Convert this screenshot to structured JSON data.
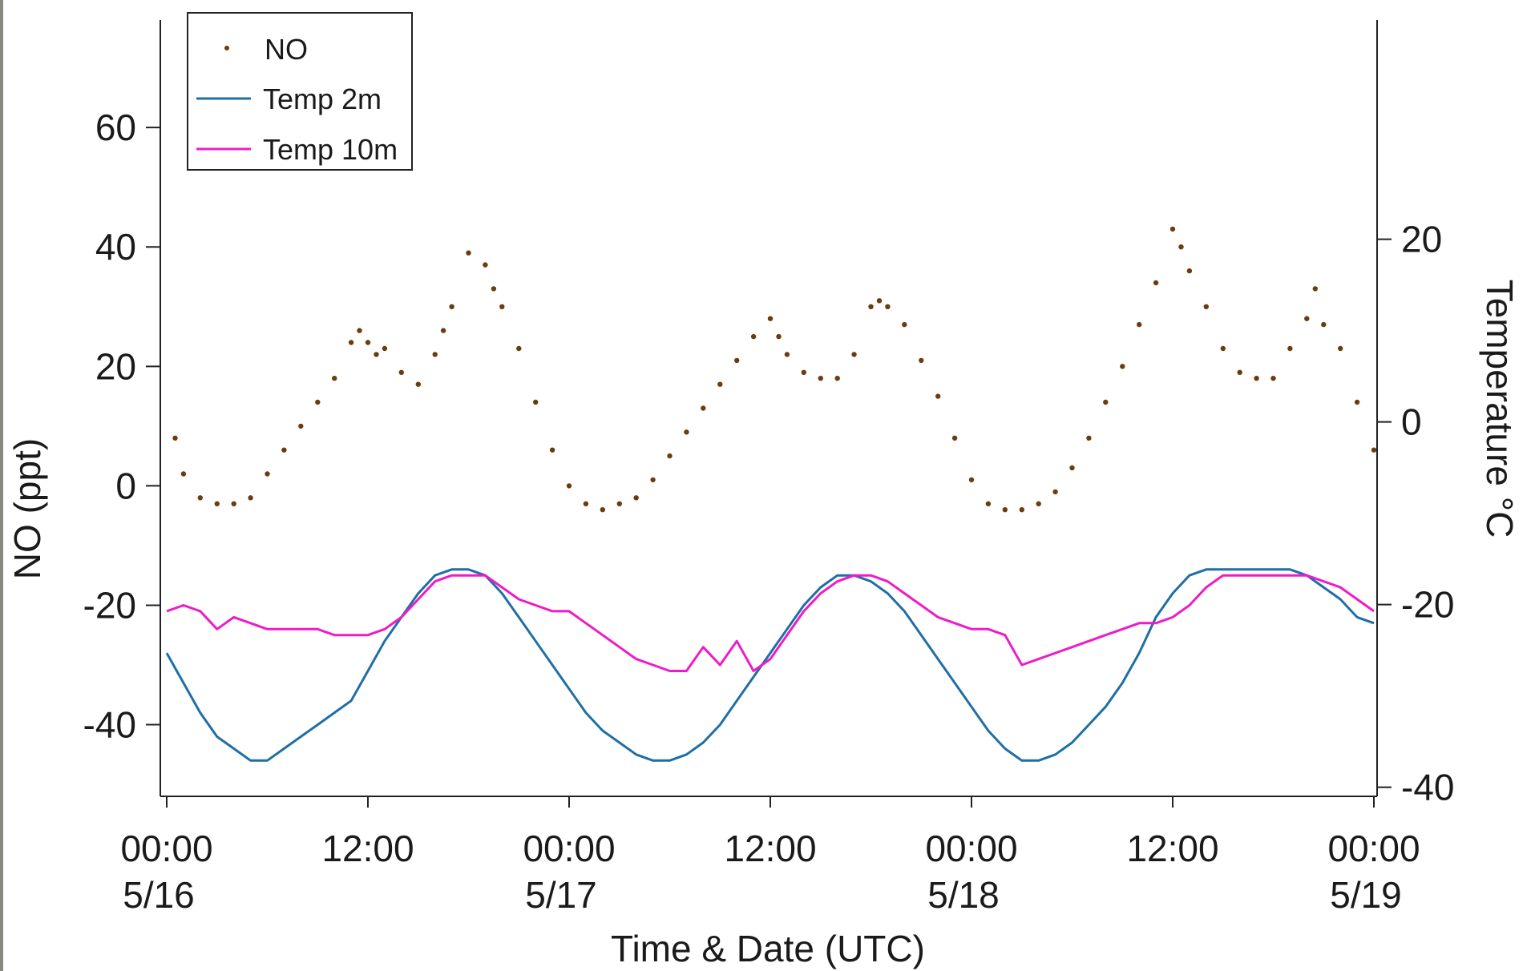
{
  "chart_data": {
    "type": "line",
    "title": "",
    "xlabel": "Time & Date (UTC)",
    "ylabel_left": "NO (ppt)",
    "ylabel_right": "Temperature °C",
    "x_range": [
      "5/16 00:00",
      "5/19 00:00"
    ],
    "x_range_hours": [
      0,
      72
    ],
    "ylim_left": [
      -52,
      78
    ],
    "ylim_right": [
      -41,
      44
    ],
    "x_ticks": [
      {
        "hour": 0,
        "time": "00:00",
        "date": "5/16"
      },
      {
        "hour": 12,
        "time": "12:00",
        "date": ""
      },
      {
        "hour": 24,
        "time": "00:00",
        "date": "5/17"
      },
      {
        "hour": 36,
        "time": "12:00",
        "date": ""
      },
      {
        "hour": 48,
        "time": "00:00",
        "date": "5/18"
      },
      {
        "hour": 60,
        "time": "12:00",
        "date": ""
      },
      {
        "hour": 72,
        "time": "00:00",
        "date": "5/19"
      }
    ],
    "y_ticks_left": [
      {
        "value": 60,
        "label": "60"
      },
      {
        "value": 40,
        "label": "40"
      },
      {
        "value": 20,
        "label": "20"
      },
      {
        "value": 0,
        "label": "0"
      },
      {
        "value": -20,
        "label": "-20"
      },
      {
        "value": -40,
        "label": "-40"
      }
    ],
    "y_ticks_right": [
      {
        "value": 20,
        "label": "20"
      },
      {
        "value": 0,
        "label": "0"
      },
      {
        "value": -20,
        "label": "-20"
      },
      {
        "value": -40,
        "label": "-40"
      }
    ],
    "grid": false,
    "legend_position": "top-left",
    "series": [
      {
        "name": "NO",
        "kind": "scatter",
        "axis": "left",
        "color": "#6b3d0c",
        "x": [
          0.5,
          1,
          2,
          3,
          4,
          5,
          6,
          7,
          8,
          9,
          10,
          11,
          11.5,
          12,
          12.5,
          13,
          14,
          15,
          16,
          16.5,
          17,
          18,
          19,
          19.5,
          20,
          21,
          22,
          23,
          24,
          25,
          26,
          27,
          28,
          29,
          30,
          31,
          32,
          33,
          34,
          35,
          36,
          36.5,
          37,
          38,
          39,
          40,
          41,
          42,
          42.5,
          43,
          44,
          45,
          46,
          47,
          48,
          49,
          50,
          51,
          52,
          53,
          54,
          55,
          56,
          57,
          58,
          59,
          60,
          60.5,
          61,
          62,
          63,
          64,
          65,
          66,
          67,
          68,
          68.5,
          69,
          70,
          71,
          72
        ],
        "y": [
          8,
          2,
          -2,
          -3,
          -3,
          -2,
          2,
          6,
          10,
          14,
          18,
          24,
          26,
          24,
          22,
          23,
          19,
          17,
          22,
          26,
          30,
          39,
          37,
          33,
          30,
          23,
          14,
          6,
          0,
          -3,
          -4,
          -3,
          -2,
          1,
          5,
          9,
          13,
          17,
          21,
          25,
          28,
          25,
          22,
          19,
          18,
          18,
          22,
          30,
          31,
          30,
          27,
          21,
          15,
          8,
          1,
          -3,
          -4,
          -4,
          -3,
          -1,
          3,
          8,
          14,
          20,
          27,
          34,
          43,
          40,
          36,
          30,
          23,
          19,
          18,
          18,
          23,
          28,
          33,
          27,
          23,
          14,
          6
        ]
      },
      {
        "name": "Temp 2m",
        "kind": "line",
        "axis": "left",
        "color": "#1f6fa5",
        "x": [
          0,
          1,
          2,
          3,
          4,
          5,
          6,
          7,
          8,
          9,
          10,
          11,
          12,
          13,
          14,
          15,
          16,
          17,
          18,
          19,
          20,
          21,
          22,
          23,
          24,
          25,
          26,
          27,
          28,
          29,
          30,
          31,
          32,
          33,
          34,
          35,
          36,
          37,
          38,
          39,
          40,
          41,
          42,
          43,
          44,
          45,
          46,
          47,
          48,
          49,
          50,
          51,
          52,
          53,
          54,
          55,
          56,
          57,
          58,
          59,
          60,
          61,
          62,
          63,
          64,
          65,
          66,
          67,
          68,
          69,
          70,
          71,
          72
        ],
        "y": [
          -28,
          -33,
          -38,
          -42,
          -44,
          -46,
          -46,
          -44,
          -42,
          -40,
          -38,
          -36,
          -31,
          -26,
          -22,
          -18,
          -15,
          -14,
          -14,
          -15,
          -18,
          -22,
          -26,
          -30,
          -34,
          -38,
          -41,
          -43,
          -45,
          -46,
          -46,
          -45,
          -43,
          -40,
          -36,
          -32,
          -28,
          -24,
          -20,
          -17,
          -15,
          -15,
          -16,
          -18,
          -21,
          -25,
          -29,
          -33,
          -37,
          -41,
          -44,
          -46,
          -46,
          -45,
          -43,
          -40,
          -37,
          -33,
          -28,
          -22,
          -18,
          -15,
          -14,
          -14,
          -14,
          -14,
          -14,
          -14,
          -15,
          -17,
          -19,
          -22,
          -23
        ]
      },
      {
        "name": "Temp 10m",
        "kind": "line",
        "axis": "left",
        "color": "#ee1cc8",
        "x": [
          0,
          1,
          2,
          3,
          4,
          5,
          6,
          7,
          8,
          9,
          10,
          11,
          12,
          13,
          14,
          15,
          16,
          17,
          18,
          19,
          20,
          21,
          22,
          23,
          24,
          25,
          26,
          27,
          28,
          29,
          30,
          31,
          32,
          33,
          34,
          35,
          36,
          37,
          38,
          39,
          40,
          41,
          42,
          43,
          44,
          45,
          46,
          47,
          48,
          49,
          50,
          51,
          52,
          53,
          54,
          55,
          56,
          57,
          58,
          59,
          60,
          61,
          62,
          63,
          64,
          65,
          66,
          67,
          68,
          69,
          70,
          71,
          72
        ],
        "y": [
          -21,
          -20,
          -21,
          -24,
          -22,
          -23,
          -24,
          -24,
          -24,
          -24,
          -25,
          -25,
          -25,
          -24,
          -22,
          -19,
          -16,
          -15,
          -15,
          -15,
          -17,
          -19,
          -20,
          -21,
          -21,
          -23,
          -25,
          -27,
          -29,
          -30,
          -31,
          -31,
          -27,
          -30,
          -26,
          -31,
          -29,
          -25,
          -21,
          -18,
          -16,
          -15,
          -15,
          -16,
          -18,
          -20,
          -22,
          -23,
          -24,
          -24,
          -25,
          -30,
          -29,
          -28,
          -27,
          -26,
          -25,
          -24,
          -23,
          -23,
          -22,
          -20,
          -17,
          -15,
          -15,
          -15,
          -15,
          -15,
          -15,
          -16,
          -17,
          -19,
          -21
        ]
      }
    ]
  }
}
